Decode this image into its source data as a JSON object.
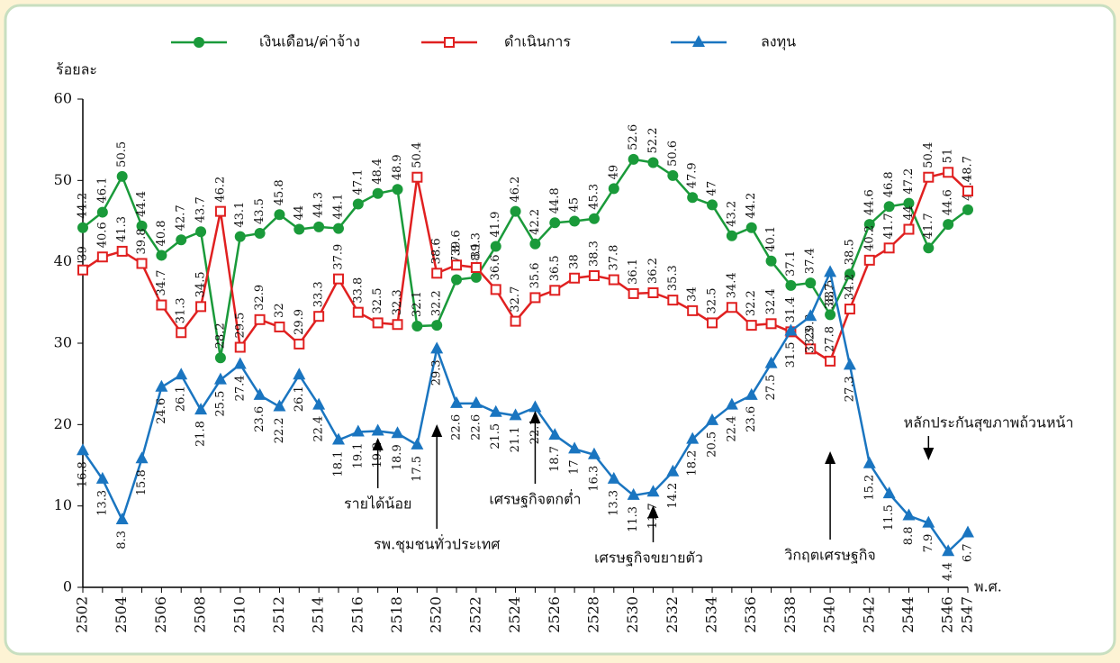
{
  "chart_data": {
    "type": "line",
    "y_label": "ร้อยละ",
    "x_label": "พ.ศ.",
    "categories": [
      "2502",
      null,
      "2504",
      null,
      "2506",
      null,
      "2508",
      null,
      "2510",
      null,
      "2512",
      null,
      "2514",
      null,
      "2516",
      null,
      "2518",
      null,
      "2520",
      null,
      "2522",
      null,
      "2524",
      null,
      "2526",
      null,
      "2528",
      null,
      "2530",
      null,
      "2532",
      null,
      "2534",
      null,
      "2536",
      null,
      "2538",
      null,
      "2540",
      null,
      "2542",
      null,
      "2544",
      null,
      "2546",
      "2547"
    ],
    "series": [
      {
        "name": "เงินเดือน/ค่าจ้าง",
        "color": "#1a9a3a",
        "marker": "circle",
        "values": [
          44.2,
          46.1,
          50.5,
          44.4,
          40.8,
          42.7,
          43.7,
          28.2,
          43.1,
          43.5,
          45.8,
          44.0,
          44.3,
          44.1,
          47.1,
          48.4,
          48.9,
          32.1,
          32.2,
          37.8,
          38.1,
          41.9,
          46.2,
          42.2,
          44.8,
          45.0,
          45.3,
          49.0,
          52.6,
          52.2,
          50.6,
          47.9,
          47.0,
          43.2,
          44.2,
          40.1,
          37.1,
          37.4,
          33.5,
          38.5,
          44.6,
          46.8,
          47.2,
          41.7,
          44.6,
          46.4
        ]
      },
      {
        "name": "ดำเนินการ",
        "color": "#e02020",
        "marker": "square",
        "values": [
          39.0,
          40.6,
          41.3,
          39.8,
          34.7,
          31.3,
          34.5,
          46.2,
          29.5,
          32.9,
          32.0,
          29.9,
          33.3,
          37.9,
          33.8,
          32.5,
          32.3,
          50.4,
          38.6,
          39.6,
          39.3,
          36.6,
          32.7,
          35.6,
          36.5,
          38.0,
          38.3,
          37.8,
          36.1,
          36.2,
          35.3,
          34.0,
          32.5,
          34.4,
          32.2,
          32.4,
          31.4,
          29.3,
          27.8,
          34.2,
          40.2,
          41.7,
          44.0,
          50.4,
          51.0,
          48.7
        ]
      },
      {
        "name": "ลงทุน",
        "color": "#1a75c0",
        "marker": "triangle",
        "values": [
          16.8,
          13.3,
          8.3,
          15.8,
          24.6,
          26.1,
          21.8,
          25.5,
          27.4,
          23.6,
          22.2,
          26.1,
          22.4,
          18.1,
          19.1,
          19.2,
          18.9,
          17.5,
          29.3,
          22.6,
          22.6,
          21.5,
          21.1,
          22.1,
          18.7,
          17.0,
          16.3,
          13.3,
          11.3,
          11.7,
          14.2,
          18.2,
          20.5,
          22.4,
          23.6,
          27.5,
          31.5,
          33.3,
          38.7,
          27.3,
          15.2,
          11.5,
          8.8,
          7.9,
          4.4,
          6.7
        ]
      }
    ],
    "annotations": [
      "รายได้น้อย",
      "รพ.ชุมชนทั่วประเทศ",
      "เศรษฐกิจตกต่ำ",
      "เศรษฐกิจขยายตัว",
      "วิกฤตเศรษฐกิจ",
      "หลักประกันสุขภาพถ้วนหน้า"
    ],
    "ylim": [
      0,
      60
    ],
    "yticks": [
      0,
      10,
      20,
      30,
      40,
      50,
      60
    ]
  }
}
